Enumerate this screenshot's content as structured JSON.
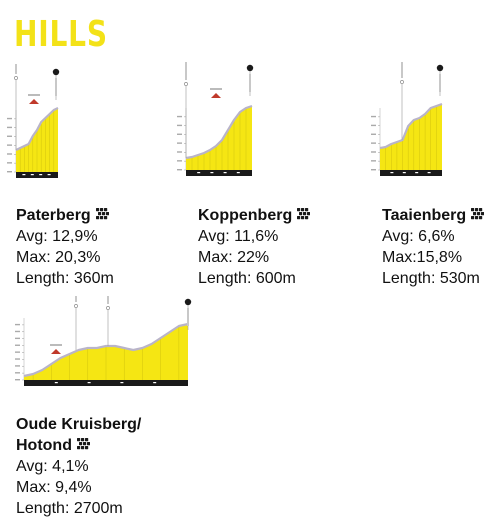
{
  "title": "HILLS",
  "colors": {
    "accent": "#f3e218",
    "fill": "#f5e613",
    "dark": "#1a1a1a"
  },
  "climbs": [
    {
      "name_lines": [
        "Paterberg"
      ],
      "avg": "Avg: 12,9%",
      "max": "Max: 20,3%",
      "length": "Length: 360m",
      "icon": "cobblestone-icon"
    },
    {
      "name_lines": [
        "Koppenberg"
      ],
      "avg": "Avg: 11,6%",
      "max": "Max: 22%",
      "length": "Length: 600m",
      "icon": "cobblestone-icon"
    },
    {
      "name_lines": [
        "Taaienberg"
      ],
      "avg": "Avg: 6,6%",
      "max": "Max:15,8%",
      "length": "Length: 530m",
      "icon": "cobblestone-icon"
    },
    {
      "name_lines": [
        "Oude Kruisberg/",
        "Hotond"
      ],
      "avg": "Avg: 4,1%",
      "max": "Max: 9,4%",
      "length": "Length: 2700m",
      "icon": "cobblestone-icon"
    }
  ]
}
